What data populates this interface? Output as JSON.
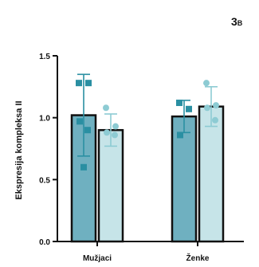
{
  "panel": {
    "number": "3",
    "sub": "B"
  },
  "chart_data": {
    "type": "bar",
    "categories": [
      "Mužjaci",
      "Ženke"
    ],
    "ylabel": "Ekspresija kompleksa II",
    "xlabel": "",
    "ylim": [
      0,
      1.5
    ],
    "yticks": [
      0.0,
      0.5,
      1.0,
      1.5
    ],
    "ytick_labels": [
      "0.0",
      "0.5",
      "1.0",
      "1.5"
    ],
    "grid": false,
    "legend": "none",
    "series": [
      {
        "values": [
          1.02,
          1.01
        ],
        "sd": [
          0.33,
          0.13
        ],
        "points": [
          [
            1.28,
            1.28,
            0.97,
            0.9,
            0.6
          ],
          [
            1.12,
            1.07,
            0.86
          ]
        ],
        "marker": "square",
        "fill": "#6fb0c0",
        "marker_color": "#2a8fa2"
      },
      {
        "values": [
          0.9,
          1.09
        ],
        "sd": [
          0.13,
          0.16
        ],
        "points": [
          [
            1.08,
            0.93,
            0.88,
            0.86
          ],
          [
            1.28,
            1.1,
            1.08,
            0.98
          ]
        ],
        "marker": "circle",
        "fill": "#c6e4e8",
        "marker_color": "#8dcbd3"
      }
    ]
  }
}
